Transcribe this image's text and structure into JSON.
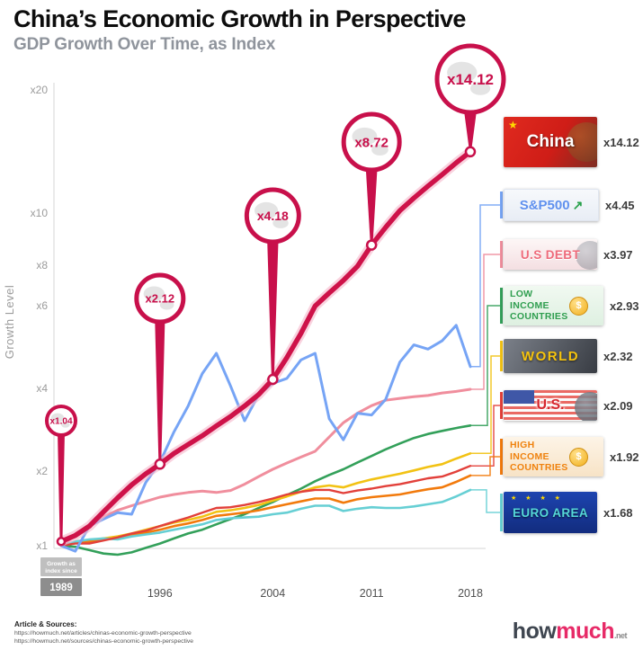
{
  "chart_data": {
    "type": "line",
    "title": "China’s Economic Growth in Perspective",
    "subtitle": "GDP Growth Over Time, as Index",
    "ylabel": "Growth Level",
    "y_axis": {
      "scale": "log-like",
      "ticks": [
        {
          "value": 20,
          "label": "x20"
        },
        {
          "value": 10,
          "label": "x10"
        },
        {
          "value": 8,
          "label": "x8"
        },
        {
          "value": 6,
          "label": "x6"
        },
        {
          "value": 4,
          "label": "x4"
        },
        {
          "value": 2,
          "label": "x2"
        },
        {
          "value": 1,
          "label": "x1"
        }
      ]
    },
    "x_axis": {
      "ticks": [
        1996,
        2004,
        2011,
        2018
      ],
      "origin": {
        "note_lines": [
          "Growth as",
          "index since"
        ],
        "year": "1989"
      }
    },
    "years": [
      1989,
      1990,
      1991,
      1992,
      1993,
      1994,
      1995,
      1996,
      1997,
      1998,
      1999,
      2000,
      2001,
      2002,
      2003,
      2004,
      2005,
      2006,
      2007,
      2008,
      2009,
      2010,
      2011,
      2012,
      2013,
      2014,
      2015,
      2016,
      2017,
      2018
    ],
    "series": [
      {
        "name": "China",
        "color": "#ce1249",
        "halo": "#f5b5ca",
        "final": "x14.12",
        "values": [
          1.04,
          1.1,
          1.2,
          1.37,
          1.56,
          1.76,
          1.95,
          2.12,
          2.32,
          2.5,
          2.69,
          2.92,
          3.16,
          3.45,
          3.8,
          4.18,
          4.65,
          5.24,
          5.99,
          6.57,
          7.18,
          7.94,
          8.72,
          9.41,
          10.14,
          10.88,
          11.64,
          12.42,
          13.27,
          14.12
        ]
      },
      {
        "name": "S&P500",
        "color": "#76a4f5",
        "final": "x4.45",
        "values": [
          1.0,
          0.95,
          1.2,
          1.28,
          1.36,
          1.34,
          1.8,
          2.15,
          2.78,
          3.45,
          4.3,
          4.75,
          4.05,
          3.05,
          3.8,
          4.1,
          4.2,
          4.6,
          4.75,
          3.1,
          2.6,
          3.25,
          3.2,
          3.65,
          4.55,
          4.95,
          4.85,
          5.05,
          5.45,
          4.45
        ]
      },
      {
        "name": "U.S Debt",
        "color": "#f08e9d",
        "final": "x3.97",
        "values": [
          1.0,
          1.1,
          1.21,
          1.31,
          1.39,
          1.45,
          1.51,
          1.57,
          1.61,
          1.64,
          1.66,
          1.64,
          1.67,
          1.77,
          1.9,
          2.03,
          2.14,
          2.25,
          2.36,
          2.66,
          3.0,
          3.25,
          3.46,
          3.62,
          3.68,
          3.73,
          3.77,
          3.85,
          3.9,
          3.97
        ]
      },
      {
        "name": "Low Income Countries",
        "color": "#33a05a",
        "final": "x2.93",
        "values": [
          1.0,
          0.99,
          0.96,
          0.93,
          0.92,
          0.94,
          0.98,
          1.02,
          1.07,
          1.12,
          1.16,
          1.22,
          1.28,
          1.34,
          1.42,
          1.5,
          1.6,
          1.7,
          1.82,
          1.93,
          2.03,
          2.15,
          2.27,
          2.4,
          2.52,
          2.64,
          2.73,
          2.8,
          2.87,
          2.93
        ]
      },
      {
        "name": "World",
        "color": "#f2c214",
        "final": "x2.32",
        "values": [
          1.0,
          1.03,
          1.05,
          1.07,
          1.09,
          1.12,
          1.16,
          1.2,
          1.24,
          1.27,
          1.31,
          1.37,
          1.39,
          1.42,
          1.46,
          1.52,
          1.58,
          1.65,
          1.72,
          1.75,
          1.72,
          1.79,
          1.85,
          1.9,
          1.95,
          2.01,
          2.07,
          2.12,
          2.22,
          2.32
        ]
      },
      {
        "name": "U.S.",
        "color": "#e2403a",
        "final": "x2.09",
        "values": [
          1.0,
          1.02,
          1.02,
          1.05,
          1.08,
          1.12,
          1.15,
          1.2,
          1.25,
          1.3,
          1.36,
          1.42,
          1.43,
          1.46,
          1.5,
          1.55,
          1.61,
          1.65,
          1.68,
          1.68,
          1.63,
          1.67,
          1.7,
          1.74,
          1.77,
          1.82,
          1.87,
          1.9,
          1.99,
          2.09
        ]
      },
      {
        "name": "High Income Countries",
        "color": "#f27a0c",
        "final": "x1.92",
        "values": [
          1.0,
          1.03,
          1.04,
          1.06,
          1.07,
          1.1,
          1.13,
          1.16,
          1.2,
          1.23,
          1.27,
          1.32,
          1.34,
          1.36,
          1.39,
          1.43,
          1.47,
          1.51,
          1.55,
          1.55,
          1.49,
          1.54,
          1.57,
          1.59,
          1.61,
          1.65,
          1.69,
          1.72,
          1.81,
          1.92
        ]
      },
      {
        "name": "Euro Area",
        "color": "#66cfd4",
        "final": "x1.68",
        "values": [
          1.0,
          1.04,
          1.06,
          1.07,
          1.06,
          1.09,
          1.11,
          1.13,
          1.16,
          1.19,
          1.22,
          1.27,
          1.29,
          1.3,
          1.31,
          1.34,
          1.36,
          1.41,
          1.45,
          1.45,
          1.38,
          1.41,
          1.43,
          1.42,
          1.42,
          1.44,
          1.47,
          1.5,
          1.58,
          1.68
        ]
      }
    ],
    "balloons": [
      {
        "year": 1989,
        "label": "x1.04"
      },
      {
        "year": 1996,
        "label": "x2.12"
      },
      {
        "year": 2004,
        "label": "x4.18"
      },
      {
        "year": 2011,
        "label": "x8.72"
      },
      {
        "year": 2018,
        "label": "x14.12"
      }
    ],
    "balloon_color": "#c8104b",
    "legend_position": "right",
    "grid": false
  },
  "legend": {
    "items": [
      {
        "label": "China",
        "value": "x14.12"
      },
      {
        "label": "S&P500",
        "value": "x4.45"
      },
      {
        "label": "U.S DEBT",
        "value": "x3.97"
      },
      {
        "label": "LOW INCOME COUNTRIES",
        "value": "x2.93"
      },
      {
        "label": "WORLD",
        "value": "x2.32"
      },
      {
        "label": "U.S.",
        "value": "x2.09"
      },
      {
        "label": "HIGH INCOME COUNTRIES",
        "value": "x1.92"
      },
      {
        "label": "EURO AREA",
        "value": "x1.68"
      }
    ],
    "icons": {
      "china_star": "★",
      "growth_arrow": "↗",
      "coin_dollar": "$",
      "eu_stars": "★ ★ ★ ★"
    }
  },
  "footer": {
    "sources_heading": "Article & Sources:",
    "urls": [
      "https://howmuch.net/articles/chinas-economic-growth-perspective",
      "https://howmuch.net/sources/chinas-economic-growth-perspective"
    ],
    "logo": {
      "part1": "how",
      "part2": "much",
      "part3": ".net"
    }
  }
}
